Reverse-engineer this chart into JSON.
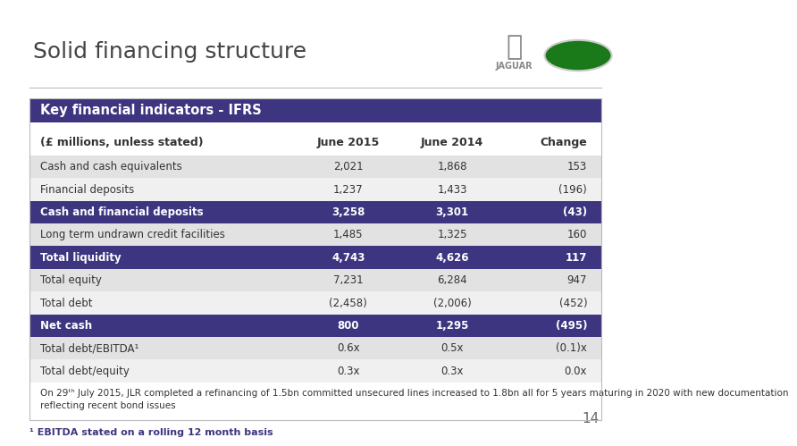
{
  "title": "Solid financing structure",
  "page_number": "14",
  "table_header": "Key financial indicators - IFRS",
  "col_headers": [
    "(£ millions, unless stated)",
    "June 2015",
    "June 2014",
    "Change"
  ],
  "rows": [
    {
      "label": "Cash and cash equivalents",
      "jun2015": "2,021",
      "jun2014": "1,868",
      "change": "153",
      "style": "normal"
    },
    {
      "label": "Financial deposits",
      "jun2015": "1,237",
      "jun2014": "1,433",
      "change": "(196)",
      "style": "normal"
    },
    {
      "label": "Cash and financial deposits",
      "jun2015": "3,258",
      "jun2014": "3,301",
      "change": "(43)",
      "style": "bold_dark"
    },
    {
      "label": "Long term undrawn credit facilities",
      "jun2015": "1,485",
      "jun2014": "1,325",
      "change": "160",
      "style": "normal"
    },
    {
      "label": "Total liquidity",
      "jun2015": "4,743",
      "jun2014": "4,626",
      "change": "117",
      "style": "bold_dark"
    },
    {
      "label": "Total equity",
      "jun2015": "7,231",
      "jun2014": "6,284",
      "change": "947",
      "style": "normal"
    },
    {
      "label": "Total debt",
      "jun2015": "(2,458)",
      "jun2014": "(2,006)",
      "change": "(452)",
      "style": "normal"
    },
    {
      "label": "Net cash",
      "jun2015": "800",
      "jun2014": "1,295",
      "change": "(495)",
      "style": "bold_dark"
    },
    {
      "label": "Total debt/EBITDA¹",
      "jun2015": "0.6x",
      "jun2014": "0.5x",
      "change": "(0.1)x",
      "style": "normal"
    },
    {
      "label": "Total debt/equity",
      "jun2015": "0.3x",
      "jun2014": "0.3x",
      "change": "0.0x",
      "style": "normal"
    }
  ],
  "footnote_line1": "On 29ᵗʰ July 2015, JLR completed a refinancing of 1.5bn committed unsecured lines increased to 1.8bn all for 5 years maturing in 2020 with new documentation",
  "footnote_line2": "reflecting recent bond issues",
  "footnote2": "¹ EBITDA stated on a rolling 12 month basis",
  "header_bg": "#3d3580",
  "bold_dark_bg": "#3d3580",
  "bold_dark_text": "#ffffff",
  "normal_bg_odd": "#e2e2e2",
  "normal_bg_even": "#f0f0f0",
  "normal_text": "#333333",
  "table_border": "#bbbbbb",
  "col_header_bg": "#ffffff",
  "footnote_bg": "#ffffff"
}
